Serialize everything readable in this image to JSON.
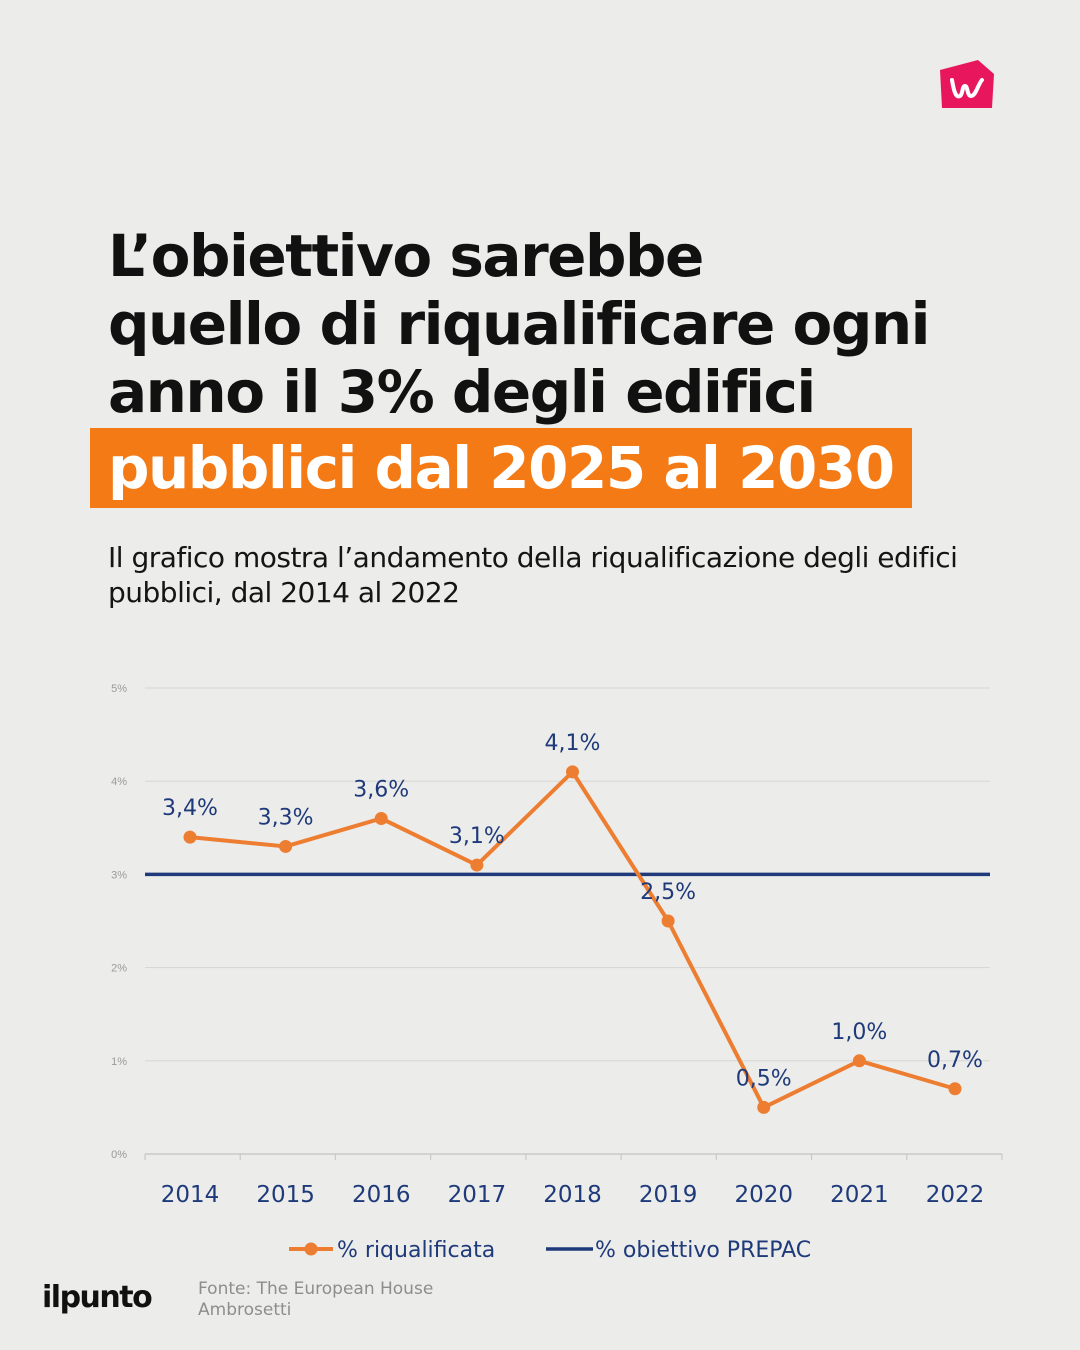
{
  "brand": {
    "corner_logo": "brand-logo-icon",
    "name": "ilpunto",
    "accent": "#f47a16",
    "logo_color": "#e8175d"
  },
  "headline": {
    "lines": [
      "L’obiettivo sarebbe",
      "quello di riqualificare ogni",
      "anno il 3% degli edifici"
    ],
    "highlight": "pubblici dal 2025 al 2030"
  },
  "subtitle": "Il grafico mostra l’andamento della riqualificazione degli edifici pubblici, dal 2014 al 2022",
  "chart_data": {
    "type": "line",
    "categories": [
      "2014",
      "2015",
      "2016",
      "2017",
      "2018",
      "2019",
      "2020",
      "2021",
      "2022"
    ],
    "y_ticks": [
      "0%",
      "1%",
      "2%",
      "3%",
      "4%",
      "5%"
    ],
    "ylim": [
      0,
      5
    ],
    "grid": true,
    "legend_position": "bottom",
    "series": [
      {
        "name": "% riqualificata",
        "values": [
          3.4,
          3.3,
          3.6,
          3.1,
          4.1,
          2.5,
          0.5,
          1.0,
          0.7
        ],
        "labels": [
          "3,4%",
          "3,3%",
          "3,6%",
          "3,1%",
          "4,1%",
          "2,5%",
          "0,5%",
          "1,0%",
          "0,7%"
        ],
        "color": "#ed7d31"
      },
      {
        "name": "% obiettivo PREPAC",
        "values": [
          3,
          3,
          3,
          3,
          3,
          3,
          3,
          3,
          3
        ],
        "color": "#1f3a7a"
      }
    ]
  },
  "footer": {
    "source": "Fonte: The European House Ambrosetti"
  }
}
